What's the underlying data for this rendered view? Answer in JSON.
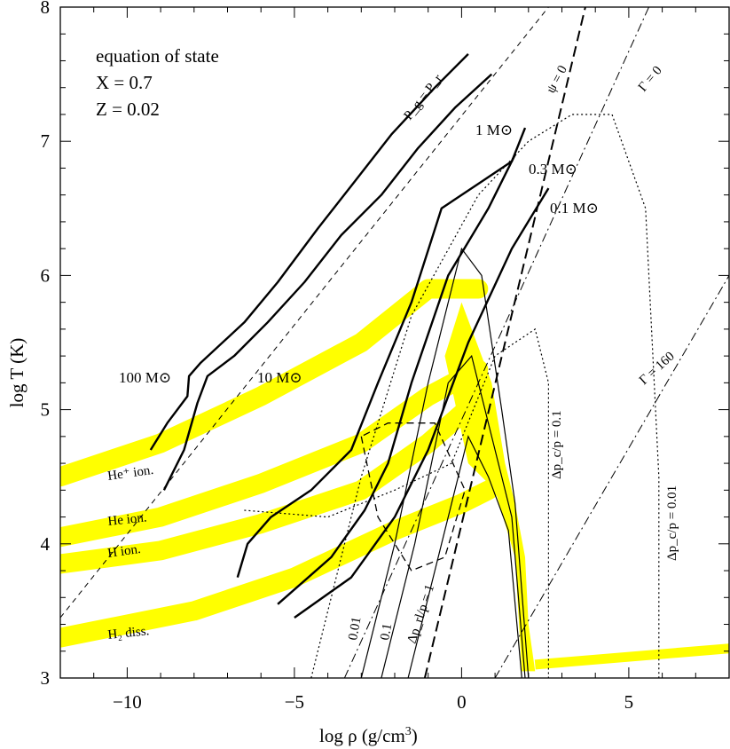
{
  "chart_data": {
    "type": "line",
    "title": "",
    "xlabel": "log ρ (g/cm³)",
    "ylabel": "log T (K)",
    "xlim": [
      -12,
      8
    ],
    "ylim": [
      3,
      8
    ],
    "x_ticks": [
      "−10",
      "−5",
      "0",
      "5"
    ],
    "y_ticks": [
      "3",
      "4",
      "5",
      "6",
      "7",
      "8"
    ],
    "legend_text": [
      "equation of state",
      "X = 0.7",
      "Z = 0.02"
    ],
    "stellar_tracks": [
      {
        "name": "100 M⊙",
        "points": [
          [
            -9.3,
            4.7
          ],
          [
            -8.8,
            4.9
          ],
          [
            -8.2,
            5.1
          ],
          [
            -8.15,
            5.25
          ],
          [
            -7.8,
            5.35
          ],
          [
            -6.5,
            5.65
          ],
          [
            -5.5,
            5.95
          ],
          [
            -4.3,
            6.35
          ],
          [
            -3.2,
            6.7
          ],
          [
            -2.1,
            7.05
          ],
          [
            -0.8,
            7.4
          ],
          [
            0.2,
            7.65
          ]
        ]
      },
      {
        "name": "10 M⊙",
        "points": [
          [
            -8.9,
            4.4
          ],
          [
            -8.3,
            4.7
          ],
          [
            -7.9,
            5.05
          ],
          [
            -7.6,
            5.25
          ],
          [
            -6.8,
            5.4
          ],
          [
            -5.8,
            5.65
          ],
          [
            -4.7,
            5.95
          ],
          [
            -3.6,
            6.3
          ],
          [
            -2.4,
            6.6
          ],
          [
            -1.3,
            6.95
          ],
          [
            -0.2,
            7.25
          ],
          [
            0.9,
            7.5
          ]
        ]
      },
      {
        "name": "1 M⊙",
        "points": [
          [
            -6.7,
            3.75
          ],
          [
            -6.4,
            4.0
          ],
          [
            -5.7,
            4.2
          ],
          [
            -4.5,
            4.4
          ],
          [
            -3.3,
            4.7
          ],
          [
            -2.5,
            5.2
          ],
          [
            -1.5,
            5.8
          ],
          [
            -0.6,
            6.5
          ],
          [
            0.6,
            6.7
          ],
          [
            1.5,
            6.85
          ],
          [
            1.9,
            7.1
          ]
        ]
      },
      {
        "name": "0.3 M⊙",
        "points": [
          [
            -5.5,
            3.55
          ],
          [
            -3.9,
            3.9
          ],
          [
            -2.9,
            4.25
          ],
          [
            -2.2,
            4.6
          ],
          [
            -1.5,
            5.2
          ],
          [
            -0.4,
            6.0
          ],
          [
            0.8,
            6.5
          ],
          [
            1.6,
            6.9
          ]
        ]
      },
      {
        "name": "0.1 M⊙",
        "points": [
          [
            -5.0,
            3.45
          ],
          [
            -3.3,
            3.75
          ],
          [
            -2.0,
            4.2
          ],
          [
            -1.0,
            4.7
          ],
          [
            0.2,
            5.5
          ],
          [
            1.5,
            6.2
          ],
          [
            2.6,
            6.65
          ]
        ]
      }
    ],
    "ionization_bands": [
      {
        "name": "He⁺ ion.",
        "points": [
          [
            -12,
            4.5
          ],
          [
            -9,
            4.75
          ],
          [
            -6,
            5.1
          ],
          [
            -3,
            5.5
          ],
          [
            -1,
            5.9
          ],
          [
            0.5,
            5.9
          ]
        ]
      },
      {
        "name": "He ion.",
        "points": [
          [
            -12,
            4.05
          ],
          [
            -9,
            4.2
          ],
          [
            -6,
            4.45
          ],
          [
            -3,
            4.75
          ],
          [
            -1,
            5.1
          ],
          [
            0.5,
            5.3
          ]
        ]
      },
      {
        "name": "H ion.",
        "points": [
          [
            -12,
            3.85
          ],
          [
            -9,
            3.95
          ],
          [
            -6,
            4.15
          ],
          [
            -3,
            4.4
          ],
          [
            -1,
            4.75
          ],
          [
            0.6,
            5.1
          ]
        ]
      },
      {
        "name": "H₂ diss.",
        "points": [
          [
            -12,
            3.3
          ],
          [
            -8,
            3.5
          ],
          [
            -5,
            3.75
          ],
          [
            -2,
            4.1
          ],
          [
            0,
            4.3
          ],
          [
            0.8,
            4.4
          ]
        ]
      }
    ],
    "reference_lines": [
      {
        "name": "P_g = P_r",
        "points": [
          [
            -12,
            3.45
          ],
          [
            2.6,
            8.0
          ]
        ]
      },
      {
        "name": "ψ = 0",
        "points": [
          [
            -1.1,
            3.0
          ],
          [
            3.7,
            8.0
          ]
        ]
      },
      {
        "name": "Γ = 0",
        "points": [
          [
            -3.5,
            3.0
          ],
          [
            5.6,
            8.0
          ]
        ]
      },
      {
        "name": "Γ = 160",
        "points": [
          [
            1.0,
            3.0
          ],
          [
            8.0,
            6.0
          ]
        ]
      }
    ],
    "annotations": [
      "P_g = P_r",
      "ψ = 0",
      "Γ = 0",
      "Γ = 160",
      "1 M⊙",
      "0.3 M⊙",
      "0.1 M⊙",
      "100 M⊙",
      "10 M⊙",
      "He⁺ ion.",
      "He ion.",
      "H ion.",
      "H₂ diss.",
      "0.01",
      "0.1",
      "Δp_rl/p = 1",
      "Δp_c/p = 0.1",
      "Δp_c/p = 0.01"
    ],
    "grid": false
  },
  "axes": {
    "xlabel_main": "log ρ (g/cm",
    "xlabel_sup": "3",
    "xlabel_end": ")",
    "ylabel": "log T (K)"
  },
  "colors": {
    "band": "#ffff00",
    "line": "#000000",
    "background": "#ffffff"
  }
}
